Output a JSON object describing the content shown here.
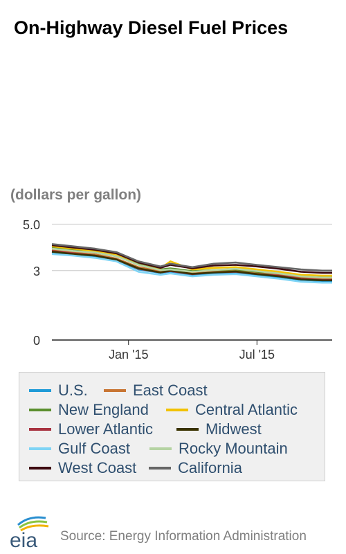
{
  "header": {
    "title": "On-Highway Diesel Fuel Prices"
  },
  "units_label": "(dollars per gallon)",
  "footer": {
    "logo_text": "eia",
    "source": "Source: Energy Information Administration"
  },
  "chart_data": {
    "type": "line",
    "title": "On-Highway Diesel Fuel Prices",
    "ylabel": "(dollars per gallon)",
    "xlabel": "",
    "ylim": [
      0,
      5
    ],
    "yticks": [
      0,
      3,
      5.0
    ],
    "ytick_labels": [
      "0",
      "3",
      "5.0"
    ],
    "xticks": [
      "2015-01-01",
      "2015-07-01"
    ],
    "xtick_labels": [
      "Jan '15",
      "Jul '15"
    ],
    "xlim": [
      "2014-09-15",
      "2015-10-15"
    ],
    "grid": true,
    "legend_position": "bottom",
    "x": [
      "2014-09-15",
      "2014-10-15",
      "2014-11-15",
      "2014-12-15",
      "2015-01-15",
      "2015-02-15",
      "2015-03-01",
      "2015-04-01",
      "2015-05-01",
      "2015-06-01",
      "2015-07-01",
      "2015-08-01",
      "2015-09-01",
      "2015-10-01",
      "2015-10-15"
    ],
    "series": [
      {
        "name": "U.S.",
        "color": "#1f9bd7",
        "values": [
          3.8,
          3.7,
          3.62,
          3.45,
          3.05,
          2.9,
          2.95,
          2.8,
          2.88,
          2.9,
          2.8,
          2.72,
          2.6,
          2.55,
          2.55
        ]
      },
      {
        "name": "East Coast",
        "color": "#c87533",
        "values": [
          3.9,
          3.78,
          3.7,
          3.52,
          3.15,
          2.98,
          3.02,
          2.88,
          2.95,
          3.0,
          2.9,
          2.82,
          2.7,
          2.65,
          2.65
        ]
      },
      {
        "name": "New England",
        "color": "#5b8f2e",
        "values": [
          4.0,
          3.88,
          3.78,
          3.62,
          3.28,
          3.05,
          3.1,
          2.98,
          3.02,
          3.05,
          2.95,
          2.88,
          2.75,
          2.72,
          2.72
        ]
      },
      {
        "name": "Central Atlantic",
        "color": "#f2c200",
        "values": [
          4.05,
          3.95,
          3.85,
          3.7,
          3.35,
          3.1,
          3.4,
          3.05,
          3.12,
          3.15,
          3.05,
          2.95,
          2.82,
          2.78,
          2.78
        ]
      },
      {
        "name": "Lower Atlantic",
        "color": "#a83240",
        "values": [
          3.85,
          3.75,
          3.65,
          3.48,
          3.08,
          2.92,
          2.98,
          2.85,
          2.92,
          2.95,
          2.85,
          2.78,
          2.65,
          2.6,
          2.6
        ]
      },
      {
        "name": "Midwest",
        "color": "#3a3300",
        "values": [
          3.82,
          3.72,
          3.65,
          3.48,
          3.1,
          2.92,
          3.0,
          2.86,
          2.92,
          2.96,
          2.85,
          2.75,
          2.62,
          2.58,
          2.58
        ]
      },
      {
        "name": "Gulf Coast",
        "color": "#7fd4f5",
        "values": [
          3.72,
          3.65,
          3.55,
          3.4,
          2.95,
          2.82,
          2.88,
          2.75,
          2.82,
          2.85,
          2.75,
          2.65,
          2.52,
          2.48,
          2.48
        ]
      },
      {
        "name": "Rocky Mountain",
        "color": "#b5d3a3",
        "values": [
          3.95,
          3.85,
          3.78,
          3.62,
          3.25,
          3.02,
          3.05,
          2.95,
          3.02,
          3.08,
          2.98,
          2.88,
          2.75,
          2.7,
          2.7
        ]
      },
      {
        "name": "West Coast",
        "color": "#3d0a10",
        "values": [
          4.1,
          4.0,
          3.9,
          3.75,
          3.35,
          3.12,
          3.25,
          3.1,
          3.22,
          3.25,
          3.18,
          3.08,
          2.95,
          2.9,
          2.9
        ]
      },
      {
        "name": "California",
        "color": "#666666",
        "values": [
          4.15,
          4.05,
          3.95,
          3.8,
          3.4,
          3.18,
          3.3,
          3.15,
          3.3,
          3.35,
          3.25,
          3.15,
          3.05,
          3.0,
          3.0
        ]
      }
    ]
  }
}
